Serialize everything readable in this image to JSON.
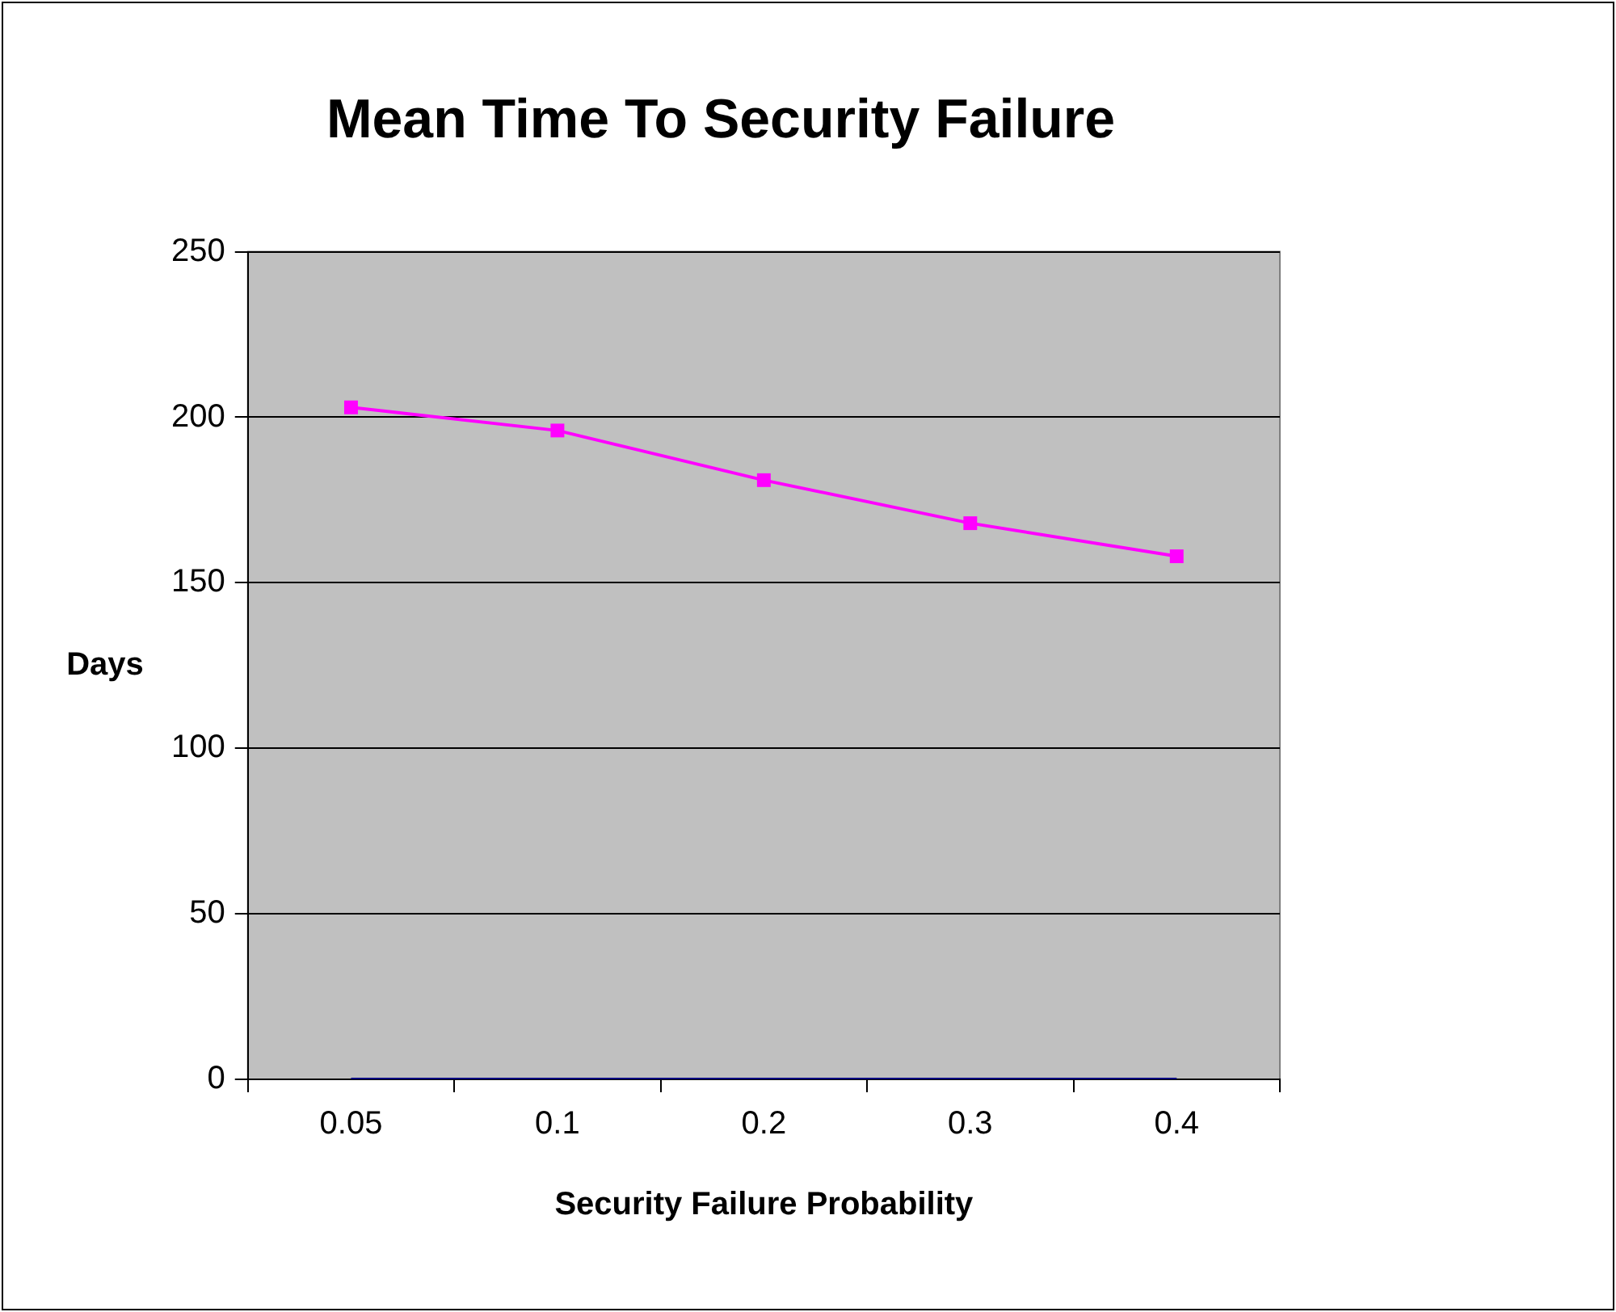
{
  "chart_data": {
    "type": "line",
    "title": "Mean Time To Security Failure",
    "xlabel": "Security Failure Probability",
    "ylabel": "Days",
    "categories": [
      "0.05",
      "0.1",
      "0.2",
      "0.3",
      "0.4"
    ],
    "series": [
      {
        "color": "#ff00ff",
        "values": [
          203,
          196,
          181,
          168,
          158
        ],
        "marker": "square"
      },
      {
        "color": "#000080",
        "values": [
          0,
          0,
          0,
          0,
          0
        ],
        "marker": "none"
      }
    ],
    "ylim": [
      0,
      250
    ],
    "yticks": [
      0,
      50,
      100,
      150,
      200,
      250
    ],
    "grid": "y"
  }
}
